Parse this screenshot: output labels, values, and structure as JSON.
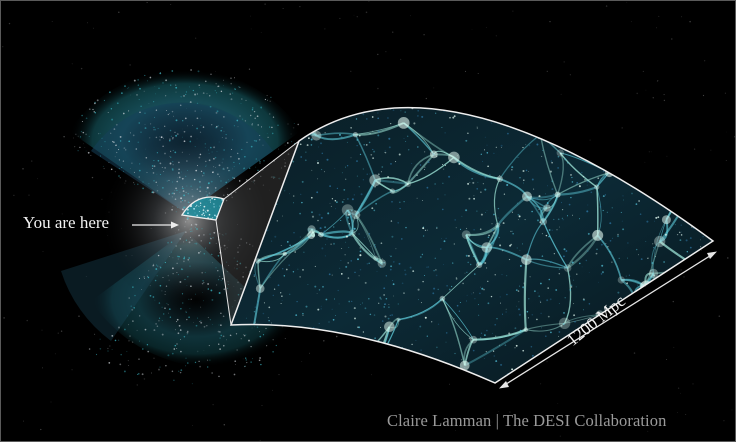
{
  "image": {
    "you_are_here": "You are here",
    "scale_label": "1200 Mpc",
    "credit": "Claire Lamman | The DESI Collaboration",
    "colors": {
      "background": "#000000",
      "cyan_glow": "#2fb8c8",
      "teal_dark": "#1a5a78",
      "filament": "#c8f0e0",
      "outline": "#e8e8e8",
      "credit_text": "#9a9a9a"
    }
  }
}
